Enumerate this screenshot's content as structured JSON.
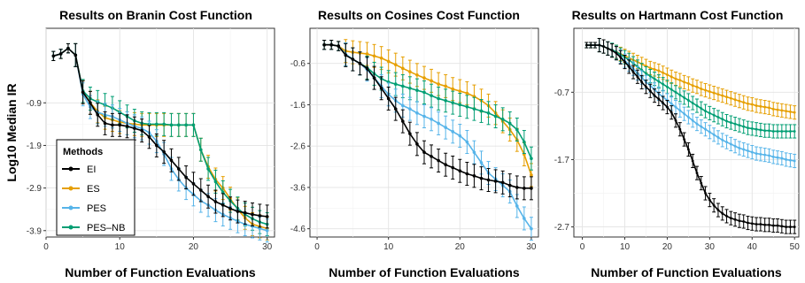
{
  "figure": {
    "ylabel": "Log10 Median IR",
    "legend": {
      "title": "Methods",
      "position": "bottom-left of first panel",
      "entries": [
        "EI",
        "ES",
        "PES",
        "PES–NB"
      ]
    }
  },
  "colors": {
    "EI": "#000000",
    "ES": "#E69F00",
    "PES": "#56B4E9",
    "PES–NB": "#009E73"
  },
  "chart_data": [
    {
      "type": "line",
      "title": "Results on Branin Cost Function",
      "xlabel": "Number of Function Evaluations",
      "ylabel": "Log10 Median IR",
      "xlim": [
        0,
        31
      ],
      "ylim": [
        -4.05,
        0.85
      ],
      "xticks": [
        0,
        10,
        20,
        30
      ],
      "yticks": [
        -0.9,
        -1.9,
        -2.9,
        -3.9
      ],
      "ytick_labels": [
        "-0.9",
        "-1.9",
        "-2.9",
        "-3.9"
      ],
      "grid": true,
      "error_bars": true,
      "x": [
        1,
        2,
        3,
        4,
        5,
        6,
        7,
        8,
        9,
        10,
        11,
        12,
        13,
        14,
        15,
        16,
        17,
        18,
        19,
        20,
        21,
        22,
        23,
        24,
        25,
        26,
        27,
        28,
        29,
        30
      ],
      "series": [
        {
          "name": "EI",
          "values": [
            0.2,
            0.25,
            0.38,
            0.22,
            -0.65,
            -0.9,
            -1.18,
            -1.38,
            -1.42,
            -1.42,
            -1.45,
            -1.5,
            -1.55,
            -1.7,
            -1.9,
            -2.05,
            -2.25,
            -2.45,
            -2.65,
            -2.8,
            -2.95,
            -3.1,
            -3.22,
            -3.3,
            -3.38,
            -3.45,
            -3.48,
            -3.52,
            -3.55,
            -3.57
          ]
        },
        {
          "name": "ES",
          "values": [
            0.2,
            0.25,
            0.38,
            0.22,
            -0.65,
            -0.9,
            -1.1,
            -1.25,
            -1.3,
            -1.35,
            -1.38,
            -1.4,
            -1.42,
            -1.42,
            -1.42,
            -1.42,
            -1.42,
            -1.42,
            -1.42,
            -1.42,
            -2.0,
            -2.4,
            -2.7,
            -2.9,
            -3.15,
            -3.4,
            -3.6,
            -3.75,
            -3.8,
            -3.85
          ]
        },
        {
          "name": "PES",
          "values": [
            0.2,
            0.25,
            0.38,
            0.22,
            -0.7,
            -1.0,
            -1.12,
            -1.18,
            -1.22,
            -1.3,
            -1.38,
            -1.45,
            -1.5,
            -1.6,
            -1.8,
            -2.1,
            -2.45,
            -2.7,
            -2.9,
            -3.05,
            -3.2,
            -3.3,
            -3.42,
            -3.52,
            -3.6,
            -3.68,
            -3.75,
            -3.8,
            -3.85,
            -3.9
          ]
        },
        {
          "name": "PES–NB",
          "values": [
            0.2,
            0.25,
            0.38,
            0.22,
            -0.62,
            -0.8,
            -0.88,
            -0.95,
            -1.02,
            -1.12,
            -1.22,
            -1.32,
            -1.38,
            -1.4,
            -1.4,
            -1.4,
            -1.42,
            -1.42,
            -1.42,
            -1.42,
            -2.0,
            -2.45,
            -2.75,
            -3.0,
            -3.2,
            -3.38,
            -3.52,
            -3.62,
            -3.7,
            -3.75
          ]
        }
      ]
    },
    {
      "type": "line",
      "title": "Results on Cosines Cost Function",
      "xlabel": "Number of Function Evaluations",
      "xlim": [
        -1,
        31
      ],
      "ylim": [
        -4.8,
        0.25
      ],
      "xticks": [
        0,
        10,
        20,
        30
      ],
      "yticks": [
        -0.6,
        -1.6,
        -2.6,
        -3.6,
        -4.6
      ],
      "ytick_labels": [
        "-0.6",
        "-1.6",
        "-2.6",
        "-3.6",
        "-4.6"
      ],
      "grid": true,
      "error_bars": true,
      "x": [
        1,
        2,
        3,
        4,
        5,
        6,
        7,
        8,
        9,
        10,
        11,
        12,
        13,
        14,
        15,
        16,
        17,
        18,
        19,
        20,
        21,
        22,
        23,
        24,
        25,
        26,
        27,
        28,
        29,
        30
      ],
      "series": [
        {
          "name": "EI",
          "values": [
            -0.15,
            -0.15,
            -0.18,
            -0.4,
            -0.5,
            -0.6,
            -0.72,
            -0.95,
            -1.2,
            -1.45,
            -1.7,
            -2.0,
            -2.3,
            -2.55,
            -2.75,
            -2.85,
            -2.95,
            -3.05,
            -3.12,
            -3.2,
            -3.27,
            -3.32,
            -3.38,
            -3.42,
            -3.45,
            -3.48,
            -3.55,
            -3.6,
            -3.62,
            -3.62
          ]
        },
        {
          "name": "ES",
          "values": [
            -0.15,
            -0.15,
            -0.18,
            -0.3,
            -0.33,
            -0.35,
            -0.37,
            -0.42,
            -0.47,
            -0.55,
            -0.63,
            -0.72,
            -0.8,
            -0.88,
            -0.95,
            -1.02,
            -1.1,
            -1.15,
            -1.22,
            -1.27,
            -1.32,
            -1.4,
            -1.5,
            -1.62,
            -1.8,
            -2.0,
            -2.2,
            -2.45,
            -2.8,
            -3.3
          ]
        },
        {
          "name": "PES",
          "values": [
            -0.15,
            -0.15,
            -0.18,
            -0.38,
            -0.5,
            -0.6,
            -0.75,
            -0.95,
            -1.15,
            -1.35,
            -1.5,
            -1.62,
            -1.7,
            -1.8,
            -1.88,
            -1.95,
            -2.05,
            -2.15,
            -2.25,
            -2.35,
            -2.5,
            -2.75,
            -3.0,
            -3.25,
            -3.4,
            -3.55,
            -3.7,
            -4.05,
            -4.35,
            -4.6
          ]
        },
        {
          "name": "PES–NB",
          "values": [
            -0.15,
            -0.15,
            -0.18,
            -0.38,
            -0.5,
            -0.6,
            -0.7,
            -0.85,
            -0.97,
            -1.05,
            -1.1,
            -1.15,
            -1.2,
            -1.25,
            -1.3,
            -1.38,
            -1.45,
            -1.5,
            -1.55,
            -1.6,
            -1.65,
            -1.7,
            -1.75,
            -1.8,
            -1.88,
            -1.95,
            -2.05,
            -2.2,
            -2.5,
            -2.9
          ]
        }
      ]
    },
    {
      "type": "line",
      "title": "Results on Hartmann Cost Function",
      "xlabel": "Number of Function Evaluations",
      "xlim": [
        -2,
        51
      ],
      "ylim": [
        -2.85,
        0.25
      ],
      "xticks": [
        0,
        10,
        20,
        30,
        40,
        50
      ],
      "yticks": [
        -0.7,
        -1.7,
        -2.7
      ],
      "ytick_labels": [
        "-0.7",
        "-1.7",
        "-2.7"
      ],
      "grid": true,
      "error_bars": true,
      "x": [
        1,
        2,
        3,
        4,
        5,
        6,
        7,
        8,
        9,
        10,
        11,
        12,
        13,
        14,
        15,
        16,
        17,
        18,
        19,
        20,
        21,
        22,
        23,
        24,
        25,
        26,
        27,
        28,
        29,
        30,
        31,
        32,
        33,
        34,
        35,
        36,
        37,
        38,
        39,
        40,
        41,
        42,
        43,
        44,
        45,
        46,
        47,
        48,
        49,
        50
      ],
      "series": [
        {
          "name": "EI",
          "values": [
            0.0,
            0.0,
            0.0,
            0.0,
            -0.02,
            -0.05,
            -0.08,
            -0.12,
            -0.18,
            -0.25,
            -0.32,
            -0.4,
            -0.47,
            -0.55,
            -0.62,
            -0.68,
            -0.75,
            -0.8,
            -0.86,
            -0.92,
            -1.0,
            -1.12,
            -1.25,
            -1.4,
            -1.55,
            -1.72,
            -1.9,
            -2.05,
            -2.2,
            -2.3,
            -2.38,
            -2.45,
            -2.5,
            -2.54,
            -2.57,
            -2.59,
            -2.61,
            -2.62,
            -2.64,
            -2.65,
            -2.66,
            -2.66,
            -2.67,
            -2.67,
            -2.68,
            -2.68,
            -2.69,
            -2.7,
            -2.7,
            -2.7
          ]
        },
        {
          "name": "ES",
          "values": [
            0.0,
            0.0,
            0.0,
            0.0,
            -0.02,
            -0.05,
            -0.08,
            -0.1,
            -0.13,
            -0.16,
            -0.19,
            -0.22,
            -0.25,
            -0.28,
            -0.31,
            -0.34,
            -0.36,
            -0.38,
            -0.41,
            -0.44,
            -0.47,
            -0.5,
            -0.52,
            -0.55,
            -0.57,
            -0.6,
            -0.62,
            -0.65,
            -0.67,
            -0.69,
            -0.71,
            -0.73,
            -0.75,
            -0.77,
            -0.79,
            -0.81,
            -0.83,
            -0.85,
            -0.87,
            -0.88,
            -0.9,
            -0.91,
            -0.92,
            -0.93,
            -0.95,
            -0.96,
            -0.97,
            -0.98,
            -0.99,
            -1.0
          ]
        },
        {
          "name": "PES",
          "values": [
            0.0,
            0.0,
            0.0,
            0.0,
            -0.02,
            -0.05,
            -0.08,
            -0.12,
            -0.17,
            -0.23,
            -0.29,
            -0.35,
            -0.42,
            -0.48,
            -0.55,
            -0.6,
            -0.66,
            -0.72,
            -0.77,
            -0.82,
            -0.87,
            -0.92,
            -0.97,
            -1.02,
            -1.07,
            -1.12,
            -1.17,
            -1.21,
            -1.25,
            -1.29,
            -1.33,
            -1.37,
            -1.41,
            -1.44,
            -1.47,
            -1.5,
            -1.53,
            -1.55,
            -1.57,
            -1.59,
            -1.61,
            -1.62,
            -1.63,
            -1.64,
            -1.66,
            -1.67,
            -1.68,
            -1.7,
            -1.71,
            -1.72
          ]
        },
        {
          "name": "PES–NB",
          "values": [
            0.0,
            0.0,
            0.0,
            0.0,
            -0.02,
            -0.05,
            -0.07,
            -0.1,
            -0.14,
            -0.18,
            -0.22,
            -0.27,
            -0.32,
            -0.37,
            -0.42,
            -0.46,
            -0.5,
            -0.54,
            -0.58,
            -0.62,
            -0.66,
            -0.7,
            -0.74,
            -0.78,
            -0.82,
            -0.86,
            -0.9,
            -0.94,
            -0.98,
            -1.01,
            -1.04,
            -1.07,
            -1.1,
            -1.13,
            -1.15,
            -1.17,
            -1.19,
            -1.21,
            -1.23,
            -1.24,
            -1.25,
            -1.26,
            -1.27,
            -1.27,
            -1.28,
            -1.28,
            -1.28,
            -1.28,
            -1.28,
            -1.28
          ]
        }
      ]
    }
  ]
}
